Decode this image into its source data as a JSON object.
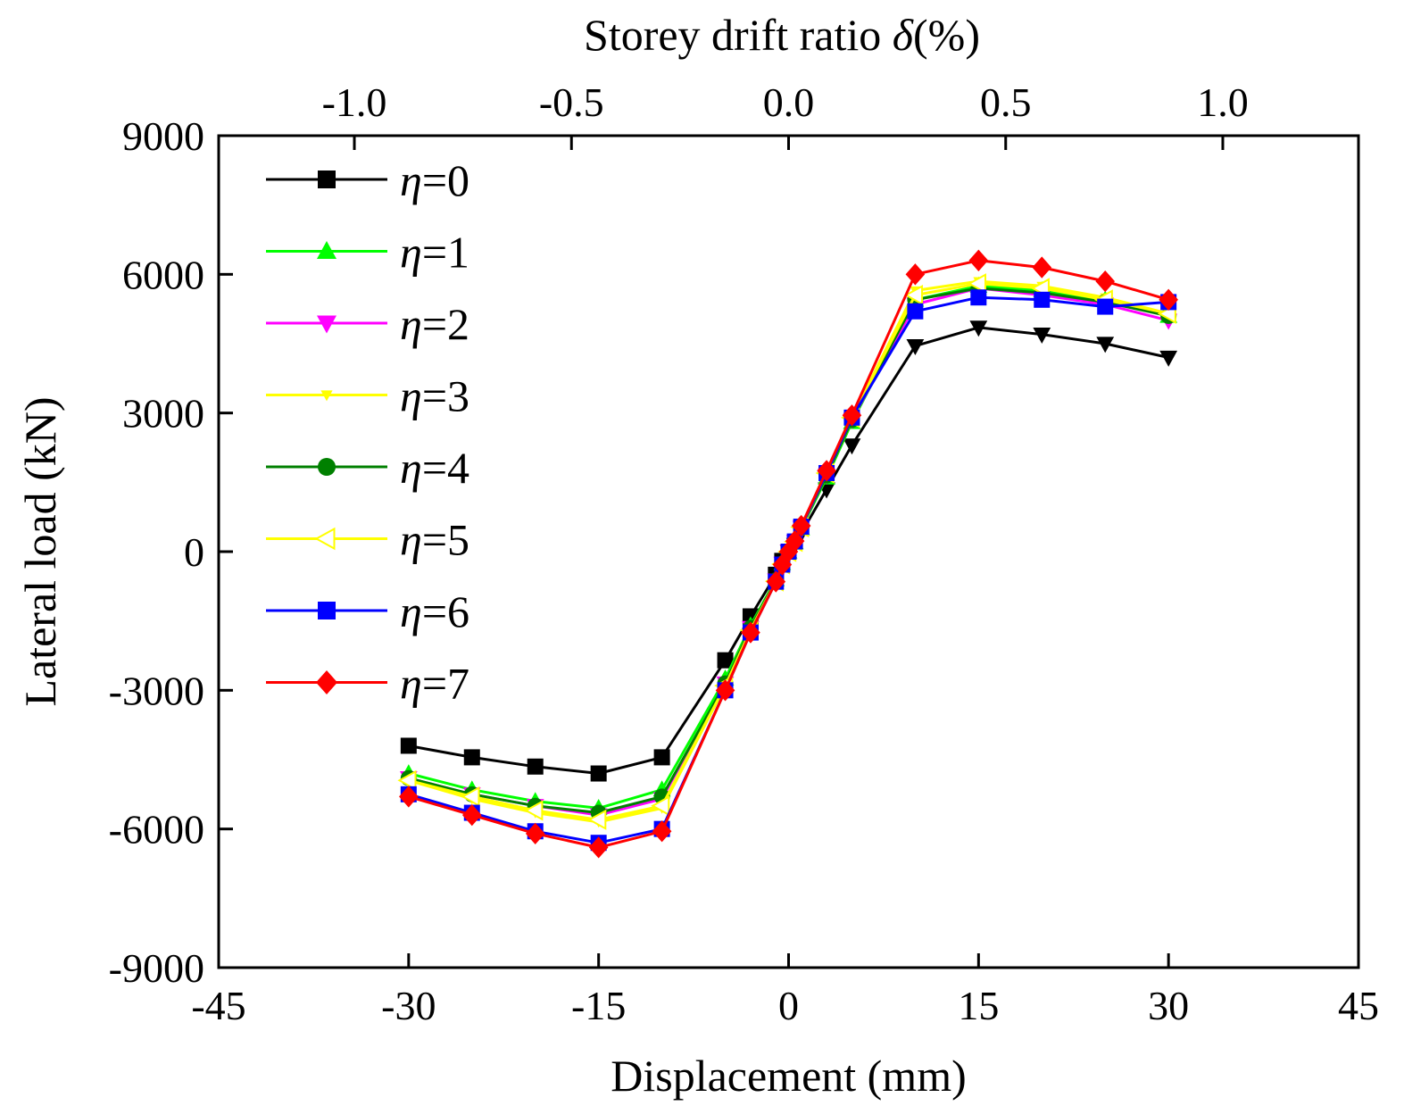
{
  "chart_data": {
    "type": "line",
    "xlabel": "Displacement (mm)",
    "ylabel": "Lateral load (kN)",
    "x2label_main": "Storey drift ratio ",
    "x2label_symbol": "δ",
    "x2label_unit": "(%)",
    "xlim": [
      -45,
      45
    ],
    "ylim": [
      -9000,
      9000
    ],
    "x2lim": [
      -1.05,
      1.05
    ],
    "x_ticks": [
      -45,
      -30,
      -15,
      0,
      15,
      30,
      45
    ],
    "y_ticks": [
      -9000,
      -6000,
      -3000,
      0,
      3000,
      6000,
      9000
    ],
    "x2_ticks": [
      -1.0,
      -0.5,
      0.0,
      0.5,
      1.0
    ],
    "x_tick_labels": [
      "-45",
      "-30",
      "-15",
      "0",
      "15",
      "30",
      "45"
    ],
    "y_tick_labels": [
      "-9000",
      "-6000",
      "-3000",
      "0",
      "3000",
      "6000",
      "9000"
    ],
    "x2_tick_labels": [
      "-1.0",
      "-0.5",
      "0.0",
      "0.5",
      "1.0"
    ],
    "grid": false,
    "legend_position": "top-left",
    "x": [
      -30,
      -25,
      -20,
      -15,
      -10,
      -5,
      -3,
      -1,
      -0.5,
      0,
      0.5,
      1,
      3,
      5,
      10,
      15,
      20,
      25,
      30
    ],
    "series": [
      {
        "name_symbol": "η",
        "name_value": "=0",
        "color": "#000000",
        "marker": "square-top-triangle-down-bottom",
        "values": [
          -4200,
          -4450,
          -4650,
          -4800,
          -4450,
          -2350,
          -1400,
          -500,
          -200,
          0,
          150,
          400,
          1350,
          2300,
          4450,
          4850,
          4700,
          4500,
          4200
        ]
      },
      {
        "name_symbol": "η",
        "name_value": "=1",
        "color": "#00ff00",
        "marker": "triangle-up",
        "values": [
          -4800,
          -5150,
          -5400,
          -5550,
          -5150,
          -2750,
          -1600,
          -600,
          -250,
          0,
          200,
          500,
          1600,
          2800,
          5450,
          5750,
          5650,
          5450,
          5100
        ]
      },
      {
        "name_symbol": "η",
        "name_value": "=2",
        "color": "#ff00ff",
        "marker": "triangle-down",
        "values": [
          -4900,
          -5250,
          -5500,
          -5700,
          -5350,
          -2850,
          -1650,
          -620,
          -260,
          0,
          210,
          520,
          1650,
          2850,
          5350,
          5700,
          5550,
          5350,
          5000
        ]
      },
      {
        "name_symbol": "η",
        "name_value": "=3",
        "color": "#ffff00",
        "marker": "triangle-down-small",
        "values": [
          -4950,
          -5350,
          -5650,
          -5850,
          -5550,
          -2900,
          -1700,
          -640,
          -270,
          0,
          215,
          530,
          1700,
          2900,
          5650,
          5850,
          5750,
          5500,
          5150
        ]
      },
      {
        "name_symbol": "η",
        "name_value": "=4",
        "color": "#008000",
        "marker": "circle",
        "values": [
          -4900,
          -5250,
          -5500,
          -5650,
          -5300,
          -2850,
          -1650,
          -620,
          -260,
          0,
          210,
          520,
          1650,
          2850,
          5450,
          5700,
          5600,
          5400,
          5100
        ]
      },
      {
        "name_symbol": "η",
        "name_value": "=5",
        "color": "#ffff00",
        "marker": "triangle-left-open",
        "values": [
          -4950,
          -5300,
          -5600,
          -5800,
          -5500,
          -2900,
          -1700,
          -640,
          -270,
          0,
          215,
          530,
          1700,
          2900,
          5550,
          5800,
          5700,
          5450,
          5150
        ]
      },
      {
        "name_symbol": "η",
        "name_value": "=6",
        "color": "#0000ff",
        "marker": "square",
        "values": [
          -5250,
          -5650,
          -6050,
          -6300,
          -6000,
          -3000,
          -1750,
          -650,
          -280,
          0,
          220,
          540,
          1700,
          2900,
          5200,
          5500,
          5450,
          5300,
          5400
        ]
      },
      {
        "name_symbol": "η",
        "name_value": "=7",
        "color": "#ff0000",
        "marker": "diamond",
        "values": [
          -5300,
          -5700,
          -6100,
          -6400,
          -6050,
          -3000,
          -1750,
          -650,
          -280,
          0,
          230,
          560,
          1750,
          2950,
          6000,
          6300,
          6150,
          5850,
          5450
        ]
      }
    ]
  }
}
